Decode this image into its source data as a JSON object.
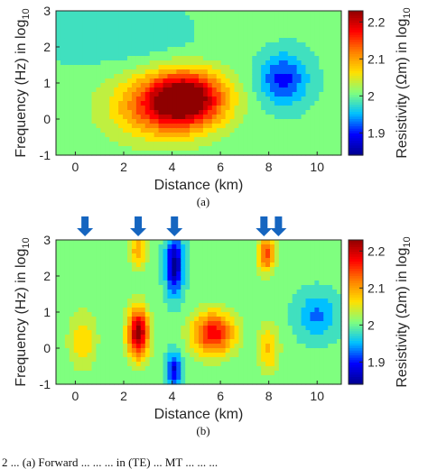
{
  "colors": {
    "colormap": [
      "#00008f",
      "#0000ff",
      "#00c0ff",
      "#7fff7f",
      "#ffe000",
      "#ff8000",
      "#ff0000",
      "#8f0000"
    ],
    "arrow": "#1565c0",
    "frame": "#262626"
  },
  "caption": "2 ... (a) Forward ... ... ... in (TE) ... MT ... ... ...",
  "chart_data": [
    {
      "type": "heatmap",
      "panel_label": "(a)",
      "title": "",
      "xlabel": "Distance (km)",
      "ylabel": "Frequency (Hz) in log",
      "ylabel_sub": "10",
      "xlim": [
        -0.8,
        11
      ],
      "ylim": [
        -1,
        3
      ],
      "xticks": [
        "0",
        "2",
        "4",
        "6",
        "8",
        "10"
      ],
      "yticks": [
        "-1",
        "0",
        "1",
        "2",
        "3"
      ],
      "colorbar": {
        "label": "Resistivity (Ωm) in log",
        "label_sub": "10",
        "range": [
          1.84,
          2.23
        ],
        "ticks": [
          "1.9",
          "2",
          "2.1",
          "2.2"
        ]
      },
      "background_value": 2.0,
      "features": [
        {
          "x": 4.6,
          "y": 0.6,
          "value": 2.21,
          "sx": 1.6,
          "sy": 0.75
        },
        {
          "x": 3.5,
          "y": 0.3,
          "value": 2.12,
          "sx": 2.2,
          "sy": 0.9
        },
        {
          "x": 8.6,
          "y": 1.1,
          "value": 1.9,
          "sx": 1.0,
          "sy": 0.7
        },
        {
          "x": 2.0,
          "y": 2.3,
          "value": 1.97,
          "sx": 3.5,
          "sy": 0.8
        },
        {
          "x": 6.5,
          "y": 2.5,
          "value": 2.02,
          "sx": 1.5,
          "sy": 0.6
        }
      ],
      "arrows": []
    },
    {
      "type": "heatmap",
      "panel_label": "(b)",
      "title": "",
      "xlabel": "Distance (km)",
      "ylabel": "Frequency (Hz) in log",
      "ylabel_sub": "10",
      "xlim": [
        -0.8,
        11
      ],
      "ylim": [
        -1,
        3
      ],
      "xticks": [
        "0",
        "2",
        "4",
        "6",
        "8",
        "10"
      ],
      "yticks": [
        "-1",
        "0",
        "1",
        "2",
        "3"
      ],
      "colorbar": {
        "label": "Resistivity (Ωm) in log",
        "label_sub": "10",
        "range": [
          1.84,
          2.23
        ],
        "ticks": [
          "1.9",
          "2",
          "2.1",
          "2.2"
        ]
      },
      "background_value": 2.0,
      "features": [
        {
          "x": 2.6,
          "y": 0.4,
          "value": 2.23,
          "sx": 0.45,
          "sy": 0.7
        },
        {
          "x": 4.1,
          "y": 2.3,
          "value": 1.84,
          "sx": 0.35,
          "sy": 0.8
        },
        {
          "x": 4.1,
          "y": -0.6,
          "value": 1.88,
          "sx": 0.3,
          "sy": 0.5
        },
        {
          "x": 5.7,
          "y": 0.4,
          "value": 2.18,
          "sx": 0.9,
          "sy": 0.6
        },
        {
          "x": 0.3,
          "y": 0.2,
          "value": 2.07,
          "sx": 0.6,
          "sy": 0.8
        },
        {
          "x": 7.9,
          "y": 2.6,
          "value": 2.15,
          "sx": 0.35,
          "sy": 0.5
        },
        {
          "x": 8.0,
          "y": 0.0,
          "value": 2.08,
          "sx": 0.45,
          "sy": 0.7
        },
        {
          "x": 10.0,
          "y": 0.9,
          "value": 1.93,
          "sx": 0.8,
          "sy": 0.6
        },
        {
          "x": 2.6,
          "y": 2.7,
          "value": 2.1,
          "sx": 0.35,
          "sy": 0.5
        }
      ],
      "arrows": [
        0.4,
        2.6,
        4.1,
        7.8,
        8.4
      ]
    }
  ]
}
